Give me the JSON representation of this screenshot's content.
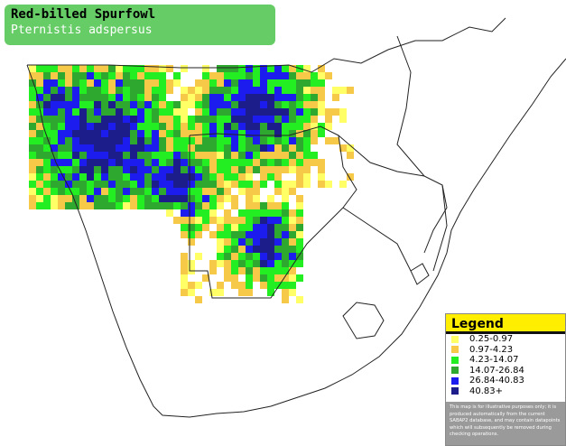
{
  "header": {
    "title": "Red-billed Spurfowl",
    "subtitle": "Pternistis adspersus"
  },
  "legend": {
    "title": "Legend",
    "items": [
      {
        "label": "0.25-0.97",
        "color": "#ffff66"
      },
      {
        "label": "0.97-4.23",
        "color": "#f7c948"
      },
      {
        "label": "4.23-14.07",
        "color": "#22ee22"
      },
      {
        "label": "14.07-26.84",
        "color": "#2fa82f"
      },
      {
        "label": "26.84-40.83",
        "color": "#1c1cee"
      },
      {
        "label": "40.83+",
        "color": "#1c1c8a"
      }
    ],
    "disclaimer": "This map is for illustrative purposes only; it is produced automatically from the current SABAP2 database, and may contain datapoints which will subsequently be removed during checking operations."
  }
}
